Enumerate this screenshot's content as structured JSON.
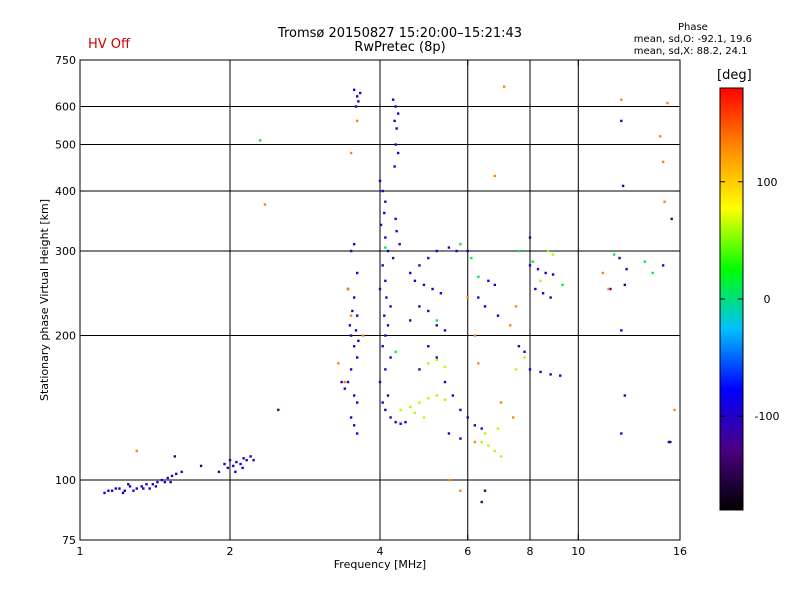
{
  "header": {
    "title": "Tromsø 20150827 15:20:00–15:21:43",
    "subtitle": "RwPretec (8p)",
    "status": "HV Off",
    "phase_stats": {
      "heading": "Phase",
      "line_o": "mean, sd,O: -92.1, 19.6",
      "line_x": "mean, sd,X:  88.2, 24.1"
    }
  },
  "chart_data": {
    "type": "scatter",
    "title": "Tromsø 20150827 15:20:00–15:21:43",
    "subtitle": "RwPretec (8p)",
    "xlabel": "Frequency [MHz]",
    "ylabel": "Stationary phase Virtual Height [km]",
    "x_scale": "log",
    "y_scale": "log",
    "xlim": [
      1,
      16
    ],
    "ylim": [
      75,
      750
    ],
    "x_ticks": [
      1,
      2,
      4,
      6,
      8,
      10,
      16
    ],
    "y_ticks": [
      75,
      100,
      200,
      300,
      400,
      500,
      600,
      750
    ],
    "grid_x": [
      2,
      4,
      6,
      8,
      10
    ],
    "grid_y": [
      100,
      200,
      300,
      400,
      500,
      600
    ],
    "colorbar": {
      "label": "[deg]",
      "range": [
        -180,
        180
      ],
      "ticks": [
        100,
        0,
        -100
      ],
      "colors": [
        "#000000",
        "#4b0082",
        "#0000ff",
        "#00bfff",
        "#00ff00",
        "#ffff00",
        "#ff8c00",
        "#ff0000"
      ]
    },
    "clusters": [
      {
        "name": "o-low-1",
        "points": [
          [
            1.12,
            94
          ],
          [
            1.14,
            95
          ],
          [
            1.16,
            95
          ],
          [
            1.18,
            96
          ],
          [
            1.2,
            96
          ],
          [
            1.23,
            95
          ],
          [
            1.26,
            97
          ],
          [
            1.3,
            96
          ],
          [
            1.33,
            97
          ],
          [
            1.36,
            98
          ],
          [
            1.4,
            98
          ],
          [
            1.43,
            99
          ],
          [
            1.46,
            100
          ],
          [
            1.5,
            101
          ],
          [
            1.53,
            102
          ],
          [
            1.56,
            103
          ],
          [
            1.6,
            104
          ],
          [
            1.38,
            96
          ],
          [
            1.42,
            97
          ],
          [
            1.48,
            99
          ],
          [
            1.52,
            99
          ],
          [
            1.34,
            96
          ],
          [
            1.28,
            95
          ],
          [
            1.22,
            94
          ]
        ],
        "phase": -100
      },
      {
        "name": "o-low-2",
        "points": [
          [
            1.95,
            108
          ],
          [
            1.98,
            106
          ],
          [
            2.0,
            110
          ],
          [
            2.03,
            107
          ],
          [
            2.06,
            109
          ],
          [
            2.1,
            108
          ],
          [
            2.13,
            111
          ],
          [
            2.16,
            110
          ],
          [
            2.2,
            112
          ],
          [
            2.23,
            110
          ],
          [
            2.05,
            104
          ],
          [
            2.12,
            106
          ]
        ],
        "phase": -100
      },
      {
        "name": "o-trace-3.6",
        "points": [
          [
            3.55,
            650
          ],
          [
            3.6,
            630
          ],
          [
            3.62,
            615
          ],
          [
            3.58,
            600
          ],
          [
            3.65,
            640
          ],
          [
            3.5,
            300
          ],
          [
            3.55,
            310
          ],
          [
            3.6,
            270
          ],
          [
            3.45,
            250
          ],
          [
            3.55,
            240
          ],
          [
            3.6,
            220
          ],
          [
            3.5,
            200
          ],
          [
            3.55,
            190
          ],
          [
            3.6,
            180
          ],
          [
            3.5,
            170
          ],
          [
            3.45,
            160
          ],
          [
            3.55,
            150
          ],
          [
            3.6,
            145
          ],
          [
            3.5,
            135
          ],
          [
            3.55,
            130
          ],
          [
            3.6,
            125
          ],
          [
            3.4,
            155
          ],
          [
            3.35,
            160
          ],
          [
            3.48,
            210
          ],
          [
            3.52,
            225
          ],
          [
            3.58,
            205
          ],
          [
            3.62,
            195
          ]
        ],
        "phase": -100
      },
      {
        "name": "o-trace-4.1",
        "points": [
          [
            4.0,
            420
          ],
          [
            4.05,
            400
          ],
          [
            4.1,
            380
          ],
          [
            4.08,
            360
          ],
          [
            4.02,
            340
          ],
          [
            4.1,
            320
          ],
          [
            4.15,
            300
          ],
          [
            4.05,
            280
          ],
          [
            4.1,
            260
          ],
          [
            4.0,
            250
          ],
          [
            4.12,
            240
          ],
          [
            4.2,
            230
          ],
          [
            4.08,
            220
          ],
          [
            4.15,
            210
          ],
          [
            4.1,
            200
          ],
          [
            4.05,
            190
          ],
          [
            4.2,
            180
          ],
          [
            4.1,
            170
          ],
          [
            4.0,
            160
          ],
          [
            4.15,
            150
          ],
          [
            4.05,
            145
          ],
          [
            4.1,
            140
          ],
          [
            4.2,
            135
          ],
          [
            4.3,
            132
          ],
          [
            4.4,
            131
          ],
          [
            4.5,
            132
          ],
          [
            4.25,
            620
          ],
          [
            4.3,
            600
          ],
          [
            4.35,
            580
          ],
          [
            4.28,
            560
          ],
          [
            4.32,
            540
          ],
          [
            4.3,
            500
          ],
          [
            4.35,
            480
          ],
          [
            4.28,
            450
          ],
          [
            4.3,
            350
          ],
          [
            4.32,
            330
          ],
          [
            4.38,
            310
          ],
          [
            4.25,
            290
          ]
        ],
        "phase": -100
      },
      {
        "name": "o-mid",
        "points": [
          [
            4.6,
            270
          ],
          [
            4.8,
            280
          ],
          [
            5.0,
            290
          ],
          [
            5.2,
            300
          ],
          [
            5.5,
            305
          ],
          [
            5.7,
            300
          ],
          [
            6.0,
            300
          ],
          [
            4.7,
            260
          ],
          [
            4.9,
            255
          ],
          [
            5.1,
            250
          ],
          [
            5.3,
            245
          ],
          [
            4.8,
            230
          ],
          [
            5.0,
            225
          ],
          [
            4.6,
            215
          ],
          [
            5.2,
            210
          ],
          [
            5.4,
            205
          ],
          [
            5.0,
            190
          ],
          [
            5.2,
            180
          ],
          [
            4.8,
            170
          ],
          [
            5.4,
            160
          ],
          [
            5.6,
            150
          ],
          [
            5.8,
            140
          ],
          [
            6.0,
            135
          ],
          [
            6.2,
            130
          ],
          [
            6.4,
            128
          ],
          [
            5.5,
            125
          ],
          [
            5.8,
            122
          ],
          [
            6.6,
            260
          ],
          [
            6.8,
            255
          ],
          [
            6.3,
            240
          ],
          [
            6.5,
            230
          ],
          [
            6.9,
            220
          ]
        ],
        "phase": -100
      },
      {
        "name": "o-high",
        "points": [
          [
            8.0,
            280
          ],
          [
            8.3,
            275
          ],
          [
            8.6,
            270
          ],
          [
            8.9,
            268
          ],
          [
            8.2,
            250
          ],
          [
            8.5,
            245
          ],
          [
            8.8,
            240
          ],
          [
            8.0,
            170
          ],
          [
            8.4,
            168
          ],
          [
            8.8,
            166
          ],
          [
            9.2,
            165
          ],
          [
            7.6,
            190
          ],
          [
            7.8,
            185
          ]
        ],
        "phase": -100
      },
      {
        "name": "o-sparse",
        "points": [
          [
            12.2,
            560
          ],
          [
            12.3,
            410
          ],
          [
            12.1,
            290
          ],
          [
            12.5,
            275
          ],
          [
            12.2,
            205
          ],
          [
            12.4,
            150
          ],
          [
            12.2,
            125
          ],
          [
            11.6,
            250
          ],
          [
            14.8,
            280
          ],
          [
            15.3,
            120
          ]
        ],
        "phase": -100
      },
      {
        "name": "x-trace-green",
        "points": [
          [
            4.4,
            140
          ],
          [
            4.6,
            142
          ],
          [
            4.8,
            145
          ],
          [
            5.0,
            148
          ],
          [
            5.2,
            150
          ],
          [
            5.4,
            147
          ],
          [
            4.7,
            138
          ],
          [
            4.9,
            135
          ],
          [
            6.4,
            120
          ],
          [
            6.6,
            118
          ],
          [
            6.8,
            115
          ],
          [
            7.0,
            112
          ],
          [
            6.5,
            125
          ],
          [
            6.9,
            128
          ],
          [
            5.0,
            175
          ],
          [
            5.2,
            178
          ],
          [
            5.4,
            172
          ],
          [
            8.4,
            260
          ],
          [
            8.7,
            300
          ],
          [
            8.9,
            295
          ],
          [
            7.5,
            170
          ],
          [
            7.8,
            180
          ]
        ],
        "phase": 60
      },
      {
        "name": "x-sparse-warm",
        "points": [
          [
            3.5,
            480
          ],
          [
            3.4,
            160
          ],
          [
            3.6,
            560
          ],
          [
            3.3,
            175
          ],
          [
            3.5,
            220
          ],
          [
            6.0,
            240
          ],
          [
            6.2,
            200
          ],
          [
            6.8,
            430
          ],
          [
            7.1,
            660
          ],
          [
            5.5,
            100
          ],
          [
            5.8,
            95
          ],
          [
            6.2,
            120
          ],
          [
            7.3,
            210
          ],
          [
            7.5,
            230
          ],
          [
            11.2,
            270
          ],
          [
            11.5,
            250
          ],
          [
            14.6,
            520
          ],
          [
            14.8,
            460
          ],
          [
            15.1,
            610
          ],
          [
            14.9,
            380
          ],
          [
            12.2,
            620
          ],
          [
            3.7,
            200
          ],
          [
            3.45,
            250
          ],
          [
            1.3,
            115
          ],
          [
            2.35,
            375
          ],
          [
            6.3,
            175
          ],
          [
            7.0,
            145
          ],
          [
            7.4,
            135
          ],
          [
            15.6,
            140
          ]
        ],
        "phase": 130
      },
      {
        "name": "x-sparse-cyan",
        "points": [
          [
            5.8,
            310
          ],
          [
            6.1,
            290
          ],
          [
            6.3,
            265
          ],
          [
            7.6,
            300
          ],
          [
            8.1,
            285
          ],
          [
            9.3,
            255
          ],
          [
            11.8,
            295
          ],
          [
            14.1,
            270
          ],
          [
            13.6,
            285
          ],
          [
            4.1,
            305
          ],
          [
            4.3,
            185
          ],
          [
            5.2,
            215
          ],
          [
            2.3,
            510
          ]
        ],
        "phase": 10
      },
      {
        "name": "scatter-dark",
        "points": [
          [
            2.5,
            140
          ],
          [
            1.75,
            107
          ],
          [
            1.25,
            98
          ],
          [
            1.55,
            112
          ],
          [
            1.9,
            104
          ],
          [
            6.4,
            90
          ],
          [
            6.5,
            95
          ],
          [
            8.0,
            320
          ],
          [
            12.4,
            255
          ],
          [
            15.4,
            350
          ],
          [
            15.2,
            120
          ]
        ],
        "phase": -140
      }
    ]
  }
}
